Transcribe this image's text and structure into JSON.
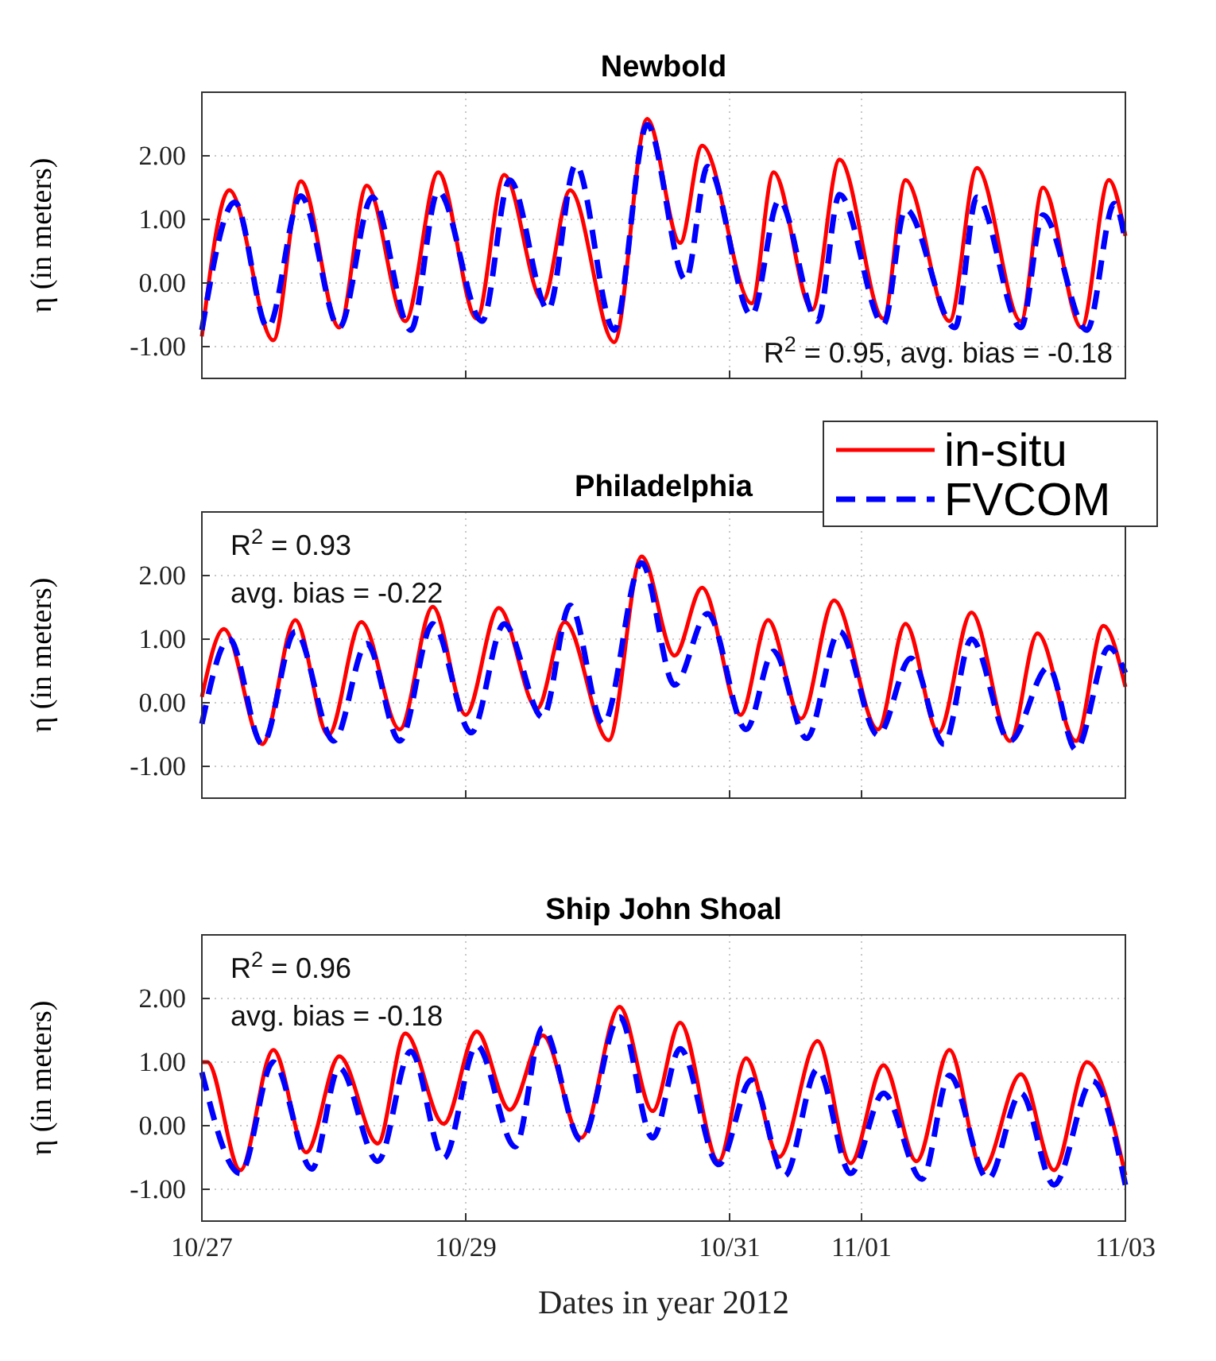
{
  "chart_data": [
    {
      "type": "line",
      "title": "Newbold",
      "ylabel": "η (in meters)",
      "xlim": [
        "2012-10-27",
        "2012-11-03"
      ],
      "xticks": [
        {
          "value": "2012-10-27",
          "label": null
        },
        {
          "value": "2012-10-29",
          "label": null
        },
        {
          "value": "2012-10-31",
          "label": null
        },
        {
          "value": "2012-11-01",
          "label": null
        },
        {
          "value": "2012-11-03",
          "label": null
        }
      ],
      "ylim": [
        -1.5,
        3
      ],
      "yticks": [
        {
          "value": -1,
          "label": "-1.00"
        },
        {
          "value": 0,
          "label": "0.00"
        },
        {
          "value": 1,
          "label": "1.00"
        },
        {
          "value": 2,
          "label": "2.00"
        }
      ],
      "tick_labels": "y",
      "grid": true,
      "annotations": [
        "R$^{2}$  = 0.95, avg. bias = -0.18"
      ],
      "series": [
        {
          "color": "#ff0000",
          "line_style": "solid",
          "x": [
            "2012-10-27T00:00",
            "2012-10-27T05:00",
            "2012-10-27T13:00",
            "2012-10-27T18:00",
            "2012-10-28T01:00",
            "2012-10-28T06:00",
            "2012-10-28T13:00",
            "2012-10-28T19:00",
            "2012-10-29T02:00",
            "2012-10-29T07:00",
            "2012-10-29T14:00",
            "2012-10-29T19:00",
            "2012-10-30T03:00",
            "2012-10-30T09:00",
            "2012-10-30T15:00",
            "2012-10-30T19:00",
            "2012-10-31T04:00",
            "2012-10-31T08:00",
            "2012-10-31T15:00",
            "2012-10-31T20:00",
            "2012-11-01T04:00",
            "2012-11-01T08:00",
            "2012-11-01T16:00",
            "2012-11-01T21:00",
            "2012-11-02T05:00",
            "2012-11-02T09:00",
            "2012-11-02T16:00",
            "2012-11-02T21:00",
            "2012-11-03T00:00"
          ],
          "values": [
            -0.84,
            1.46,
            -0.9,
            1.6,
            -0.7,
            1.53,
            -0.6,
            1.74,
            -0.56,
            1.7,
            -0.28,
            1.46,
            -0.93,
            2.58,
            0.63,
            2.16,
            -0.32,
            1.74,
            -0.42,
            1.94,
            -0.56,
            1.62,
            -0.6,
            1.81,
            -0.6,
            1.5,
            -0.7,
            1.62,
            0.74
          ]
        },
        {
          "color": "#0000ff",
          "line_style": "dashed",
          "x": [
            "2012-10-27T00:00",
            "2012-10-27T06:00",
            "2012-10-27T12:00",
            "2012-10-27T18:00",
            "2012-10-28T01:00",
            "2012-10-28T07:00",
            "2012-10-28T14:00",
            "2012-10-28T19:00",
            "2012-10-29T03:00",
            "2012-10-29T08:00",
            "2012-10-29T15:00",
            "2012-10-29T20:00",
            "2012-10-30T03:00",
            "2012-10-30T09:00",
            "2012-10-30T16:00",
            "2012-10-30T20:00",
            "2012-10-31T04:00",
            "2012-10-31T09:00",
            "2012-10-31T16:00",
            "2012-10-31T20:00",
            "2012-11-01T04:00",
            "2012-11-01T08:00",
            "2012-11-01T17:00",
            "2012-11-01T21:00",
            "2012-11-02T05:00",
            "2012-11-02T09:00",
            "2012-11-02T17:00",
            "2012-11-02T22:00",
            "2012-11-03T00:00"
          ],
          "values": [
            -0.74,
            1.27,
            -0.7,
            1.37,
            -0.7,
            1.35,
            -0.74,
            1.44,
            -0.6,
            1.62,
            -0.42,
            1.86,
            -0.74,
            2.49,
            0.05,
            1.83,
            -0.51,
            1.3,
            -0.6,
            1.39,
            -0.65,
            1.16,
            -0.7,
            1.35,
            -0.7,
            1.07,
            -0.74,
            1.25,
            0.65
          ]
        }
      ]
    },
    {
      "type": "line",
      "title": "Philadelphia",
      "ylabel": "η (in meters)",
      "xlim": [
        "2012-10-27",
        "2012-11-03"
      ],
      "xticks": [
        {
          "value": "2012-10-27",
          "label": null
        },
        {
          "value": "2012-10-29",
          "label": null
        },
        {
          "value": "2012-10-31",
          "label": null
        },
        {
          "value": "2012-11-01",
          "label": null
        },
        {
          "value": "2012-11-03",
          "label": null
        }
      ],
      "ylim": [
        -1.5,
        3
      ],
      "yticks": [
        {
          "value": -1,
          "label": "-1.00"
        },
        {
          "value": 0,
          "label": "0.00"
        },
        {
          "value": 1,
          "label": "1.00"
        },
        {
          "value": 2,
          "label": "2.00"
        }
      ],
      "tick_labels": "y",
      "grid": true,
      "legend": "top right",
      "annotations": [
        "R$^{2}$  = 0.93",
        "avg. bias = -0.22"
      ],
      "series": [
        {
          "name": "in-situ",
          "color": "#ff0000",
          "line_style": "solid",
          "x": [
            "2012-10-27T00:00",
            "2012-10-27T04:00",
            "2012-10-27T11:00",
            "2012-10-27T17:00",
            "2012-10-27T23:00",
            "2012-10-28T05:00",
            "2012-10-28T12:00",
            "2012-10-28T18:00",
            "2012-10-29T00:00",
            "2012-10-29T06:00",
            "2012-10-29T13:00",
            "2012-10-29T18:00",
            "2012-10-30T02:00",
            "2012-10-30T08:00",
            "2012-10-30T14:00",
            "2012-10-30T19:00",
            "2012-10-31T02:00",
            "2012-10-31T07:00",
            "2012-10-31T13:00",
            "2012-10-31T19:00",
            "2012-11-01T03:00",
            "2012-11-01T08:00",
            "2012-11-01T14:00",
            "2012-11-01T20:00",
            "2012-11-02T03:00",
            "2012-11-02T08:00",
            "2012-11-02T15:00",
            "2012-11-02T20:00",
            "2012-11-03T00:00"
          ],
          "values": [
            0.09,
            1.16,
            -0.65,
            1.3,
            -0.51,
            1.27,
            -0.42,
            1.51,
            -0.19,
            1.49,
            -0.09,
            1.27,
            -0.59,
            2.3,
            0.74,
            1.81,
            -0.19,
            1.3,
            -0.25,
            1.61,
            -0.42,
            1.24,
            -0.47,
            1.42,
            -0.6,
            1.09,
            -0.6,
            1.21,
            0.25
          ]
        },
        {
          "name": "FVCOM",
          "color": "#0000ff",
          "line_style": "dashed",
          "x": [
            "2012-10-27T00:00",
            "2012-10-27T05:00",
            "2012-10-27T11:00",
            "2012-10-27T17:00",
            "2012-10-28T00:00",
            "2012-10-28T06:00",
            "2012-10-28T12:00",
            "2012-10-28T18:00",
            "2012-10-29T01:00",
            "2012-10-29T07:00",
            "2012-10-29T14:00",
            "2012-10-29T19:00",
            "2012-10-30T01:00",
            "2012-10-30T08:00",
            "2012-10-30T14:00",
            "2012-10-30T20:00",
            "2012-10-31T03:00",
            "2012-10-31T08:00",
            "2012-10-31T14:00",
            "2012-10-31T20:00",
            "2012-11-01T03:00",
            "2012-11-01T09:00",
            "2012-11-01T15:00",
            "2012-11-01T20:00",
            "2012-11-02T03:00",
            "2012-11-02T10:00",
            "2012-11-02T15:00",
            "2012-11-02T21:00",
            "2012-11-03T00:00"
          ],
          "values": [
            -0.33,
            1.0,
            -0.65,
            1.12,
            -0.6,
            0.93,
            -0.6,
            1.24,
            -0.47,
            1.24,
            -0.23,
            1.53,
            -0.33,
            2.2,
            0.28,
            1.4,
            -0.42,
            0.81,
            -0.56,
            1.12,
            -0.51,
            0.7,
            -0.65,
            1.0,
            -0.6,
            0.56,
            -0.74,
            0.87,
            0.47
          ]
        }
      ]
    },
    {
      "type": "line",
      "title": "Ship John Shoal",
      "xlabel": "Dates in year 2012",
      "ylabel": "η (in meters)",
      "xlim": [
        "2012-10-27",
        "2012-11-03"
      ],
      "xticks": [
        {
          "value": "2012-10-27",
          "label": "10/27"
        },
        {
          "value": "2012-10-29",
          "label": "10/29"
        },
        {
          "value": "2012-10-31",
          "label": "10/31"
        },
        {
          "value": "2012-11-01",
          "label": "11/01"
        },
        {
          "value": "2012-11-03",
          "label": "11/03"
        }
      ],
      "ylim": [
        -1.5,
        3
      ],
      "yticks": [
        {
          "value": -1,
          "label": "-1.00"
        },
        {
          "value": 0,
          "label": "0.00"
        },
        {
          "value": 1,
          "label": "1.00"
        },
        {
          "value": 2,
          "label": "2.00"
        }
      ],
      "grid": true,
      "annotations": [
        "R$^{2}$  = 0.96",
        "avg. bias = -0.18"
      ],
      "series": [
        {
          "color": "#ff0000",
          "line_style": "solid",
          "x": [
            "2012-10-27T00:00",
            "2012-10-27T01:00",
            "2012-10-27T07:00",
            "2012-10-27T13:00",
            "2012-10-27T19:00",
            "2012-10-28T01:00",
            "2012-10-28T08:00",
            "2012-10-28T13:00",
            "2012-10-28T20:00",
            "2012-10-29T02:00",
            "2012-10-29T08:00",
            "2012-10-29T14:00",
            "2012-10-29T21:00",
            "2012-10-30T04:00",
            "2012-10-30T10:00",
            "2012-10-30T15:00",
            "2012-10-30T22:00",
            "2012-10-31T03:00",
            "2012-10-31T09:00",
            "2012-10-31T16:00",
            "2012-10-31T22:00",
            "2012-11-01T04:00",
            "2012-11-01T10:00",
            "2012-11-01T16:00",
            "2012-11-01T22:00",
            "2012-11-02T05:00",
            "2012-11-02T11:00",
            "2012-11-02T17:00",
            "2012-11-03T00:00"
          ],
          "values": [
            1.0,
            1.0,
            -0.7,
            1.19,
            -0.42,
            1.09,
            -0.28,
            1.45,
            0.03,
            1.48,
            0.25,
            1.42,
            -0.19,
            1.87,
            0.23,
            1.62,
            -0.56,
            1.06,
            -0.49,
            1.33,
            -0.59,
            0.95,
            -0.56,
            1.19,
            -0.7,
            0.81,
            -0.7,
            1.0,
            -0.78
          ]
        },
        {
          "color": "#0000ff",
          "line_style": "dashed",
          "x": [
            "2012-10-27T00:00",
            "2012-10-27T07:00",
            "2012-10-27T13:00",
            "2012-10-27T20:00",
            "2012-10-28T01:00",
            "2012-10-28T08:00",
            "2012-10-28T14:00",
            "2012-10-28T20:00",
            "2012-10-29T02:00",
            "2012-10-29T09:00",
            "2012-10-29T14:00",
            "2012-10-29T21:00",
            "2012-10-30T04:00",
            "2012-10-30T10:00",
            "2012-10-30T15:00",
            "2012-10-30T22:00",
            "2012-10-31T04:00",
            "2012-10-31T10:00",
            "2012-10-31T16:00",
            "2012-10-31T22:00",
            "2012-11-01T04:00",
            "2012-11-01T11:00",
            "2012-11-01T16:00",
            "2012-11-01T23:00",
            "2012-11-02T05:00",
            "2012-11-02T11:00",
            "2012-11-02T18:00",
            "2012-11-03T00:00"
          ],
          "values": [
            0.84,
            -0.75,
            1.0,
            -0.68,
            0.91,
            -0.56,
            1.17,
            -0.51,
            1.26,
            -0.33,
            1.54,
            -0.23,
            1.71,
            -0.19,
            1.21,
            -0.61,
            0.72,
            -0.79,
            0.89,
            -0.75,
            0.51,
            -0.84,
            0.79,
            -0.84,
            0.51,
            -0.93,
            0.7,
            -0.93
          ]
        }
      ]
    }
  ]
}
